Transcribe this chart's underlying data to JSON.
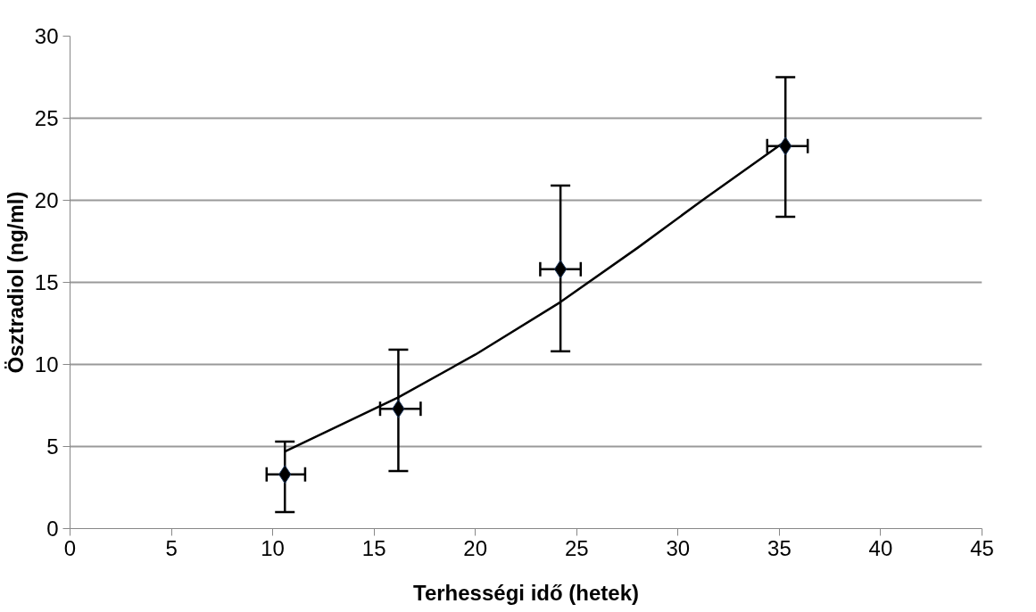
{
  "chart_data": {
    "type": "scatter",
    "xlabel": "Terhességi idő (hetek)",
    "ylabel": "Ösztradiol (ng/ml)",
    "xlim": [
      0,
      45
    ],
    "xticks": [
      0,
      5,
      10,
      15,
      20,
      25,
      30,
      35,
      40,
      45
    ],
    "ylim": [
      0,
      30
    ],
    "yticks": [
      0,
      5,
      10,
      15,
      20,
      25,
      30
    ],
    "grid": "y",
    "marker": "diamond",
    "series": [
      {
        "color": "#000000",
        "x": [
          10.6,
          16.2,
          24.2,
          35.3
        ],
        "values": [
          3.3,
          7.3,
          15.8,
          23.3
        ],
        "errors": [
          [
            1.0,
            5.3
          ],
          [
            3.5,
            10.9
          ],
          [
            10.8,
            20.9
          ],
          [
            19.0,
            27.5
          ]
        ],
        "xerrors": [
          [
            9.7,
            11.6
          ],
          [
            15.3,
            17.3
          ],
          [
            23.2,
            25.2
          ],
          [
            34.4,
            36.4
          ]
        ]
      },
      {
        "type": "line",
        "color": "#000000",
        "marker": "none",
        "line_style": "solid",
        "x": [
          10.6,
          16.2,
          20,
          24.2,
          28,
          31.2,
          35.3
        ],
        "values": [
          4.7,
          8.0,
          10.6,
          13.8,
          17.1,
          20.0,
          23.6
        ]
      }
    ]
  }
}
